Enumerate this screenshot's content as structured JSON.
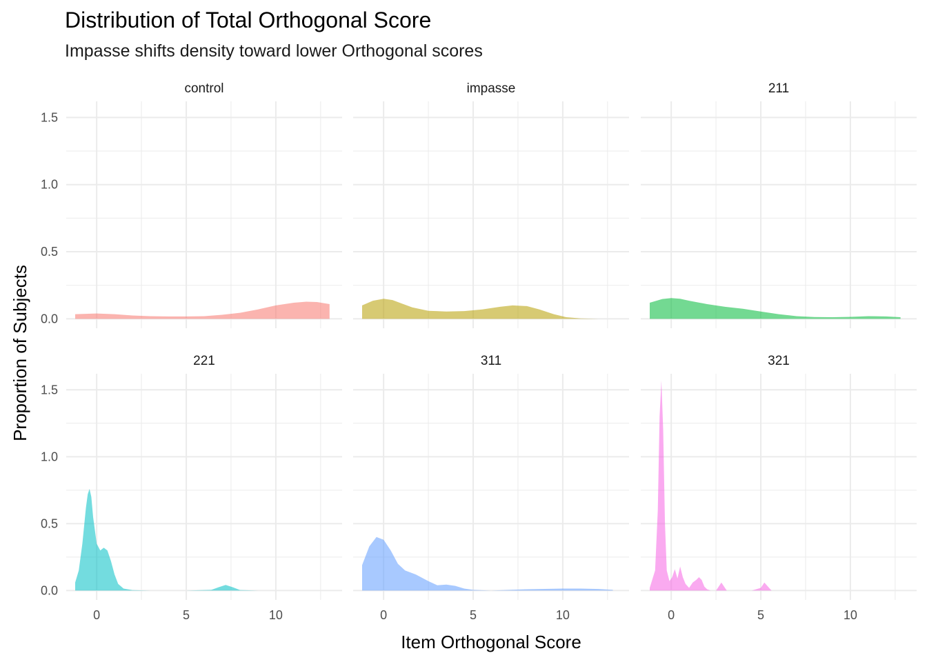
{
  "chart_data": {
    "type": "area",
    "title": "Distribution of Total Orthogonal Score",
    "subtitle": "Impasse shifts density toward lower Orthogonal scores",
    "xlabel": "Item Orthogonal Score",
    "ylabel": "Proportion of Subjects",
    "xlim": [
      -1.7,
      13.7
    ],
    "ylim": [
      -0.07,
      1.62
    ],
    "x_ticks": [
      0,
      5,
      10
    ],
    "x_tick_labels": [
      "0",
      "5",
      "10"
    ],
    "y_ticks": [
      0.0,
      0.5,
      1.0,
      1.5
    ],
    "y_tick_labels": [
      "0.0",
      "0.5",
      "1.0",
      "1.5"
    ],
    "grid": true,
    "legend": "none",
    "panels": [
      {
        "name": "control",
        "color": "#F8766D",
        "x": [
          -1.2,
          0,
          1,
          2,
          3,
          4,
          5,
          6,
          7,
          8,
          9,
          10,
          11,
          11.7,
          12.3,
          13.0
        ],
        "y": [
          0.035,
          0.04,
          0.035,
          0.025,
          0.02,
          0.018,
          0.018,
          0.02,
          0.03,
          0.045,
          0.07,
          0.1,
          0.12,
          0.128,
          0.125,
          0.11
        ]
      },
      {
        "name": "impasse",
        "color": "#B79F00",
        "x": [
          -1.2,
          -0.6,
          0,
          0.5,
          1,
          1.6,
          2.5,
          3.5,
          4.5,
          5.5,
          6.5,
          7.2,
          8,
          8.7,
          9.5,
          10.2,
          11,
          12
        ],
        "y": [
          0.1,
          0.135,
          0.15,
          0.14,
          0.115,
          0.085,
          0.06,
          0.055,
          0.058,
          0.07,
          0.09,
          0.1,
          0.095,
          0.07,
          0.035,
          0.012,
          0.003,
          0.0
        ]
      },
      {
        "name": "211",
        "color": "#00BA38",
        "x": [
          -1.2,
          -0.5,
          0,
          0.5,
          1,
          2,
          3,
          4,
          5,
          6,
          7,
          8,
          9,
          10,
          11,
          12,
          12.8
        ],
        "y": [
          0.12,
          0.148,
          0.155,
          0.15,
          0.135,
          0.11,
          0.09,
          0.075,
          0.055,
          0.035,
          0.02,
          0.013,
          0.012,
          0.015,
          0.02,
          0.018,
          0.012
        ]
      },
      {
        "name": "221",
        "color": "#00BFC4",
        "x": [
          -1.2,
          -1.0,
          -0.8,
          -0.6,
          -0.5,
          -0.4,
          -0.3,
          -0.2,
          0.0,
          0.2,
          0.4,
          0.6,
          0.8,
          1.0,
          1.2,
          1.5,
          2.0,
          3,
          5,
          6.4,
          6.8,
          7.2,
          7.6,
          8.0,
          9,
          11,
          12.8
        ],
        "y": [
          0.06,
          0.15,
          0.35,
          0.62,
          0.72,
          0.76,
          0.7,
          0.55,
          0.35,
          0.3,
          0.32,
          0.3,
          0.22,
          0.12,
          0.05,
          0.015,
          0.003,
          0.0,
          0.0,
          0.005,
          0.025,
          0.042,
          0.025,
          0.004,
          0.0,
          0.0,
          0.0
        ]
      },
      {
        "name": "311",
        "color": "#619CFF",
        "x": [
          -1.2,
          -0.8,
          -0.4,
          0,
          0.4,
          0.8,
          1.2,
          1.8,
          2.5,
          3.0,
          3.5,
          4.0,
          4.5,
          5,
          6,
          8,
          10,
          11,
          12,
          12.8
        ],
        "y": [
          0.19,
          0.33,
          0.4,
          0.38,
          0.3,
          0.2,
          0.15,
          0.12,
          0.07,
          0.04,
          0.045,
          0.035,
          0.015,
          0.005,
          0.0,
          0.01,
          0.015,
          0.015,
          0.012,
          0.005
        ]
      },
      {
        "name": "321",
        "color": "#F564E3",
        "x": [
          -1.2,
          -0.9,
          -0.75,
          -0.65,
          -0.55,
          -0.45,
          -0.35,
          -0.25,
          -0.1,
          0.05,
          0.2,
          0.35,
          0.5,
          0.65,
          0.8,
          1.0,
          1.2,
          1.4,
          1.55,
          1.7,
          1.85,
          2.0,
          2.2,
          2.5,
          2.65,
          2.8,
          2.95,
          3.1,
          3.5,
          4.5,
          5.0,
          5.2,
          5.4,
          5.6,
          6,
          8,
          12.8
        ],
        "y": [
          0.02,
          0.15,
          0.6,
          1.3,
          1.57,
          1.2,
          0.5,
          0.15,
          0.07,
          0.1,
          0.16,
          0.09,
          0.18,
          0.1,
          0.05,
          0.02,
          0.06,
          0.08,
          0.1,
          0.08,
          0.03,
          0.01,
          0.0,
          0.0,
          0.03,
          0.06,
          0.03,
          0.0,
          0.0,
          0.0,
          0.02,
          0.06,
          0.03,
          0.0,
          0.0,
          0.0,
          0.0
        ]
      }
    ]
  }
}
